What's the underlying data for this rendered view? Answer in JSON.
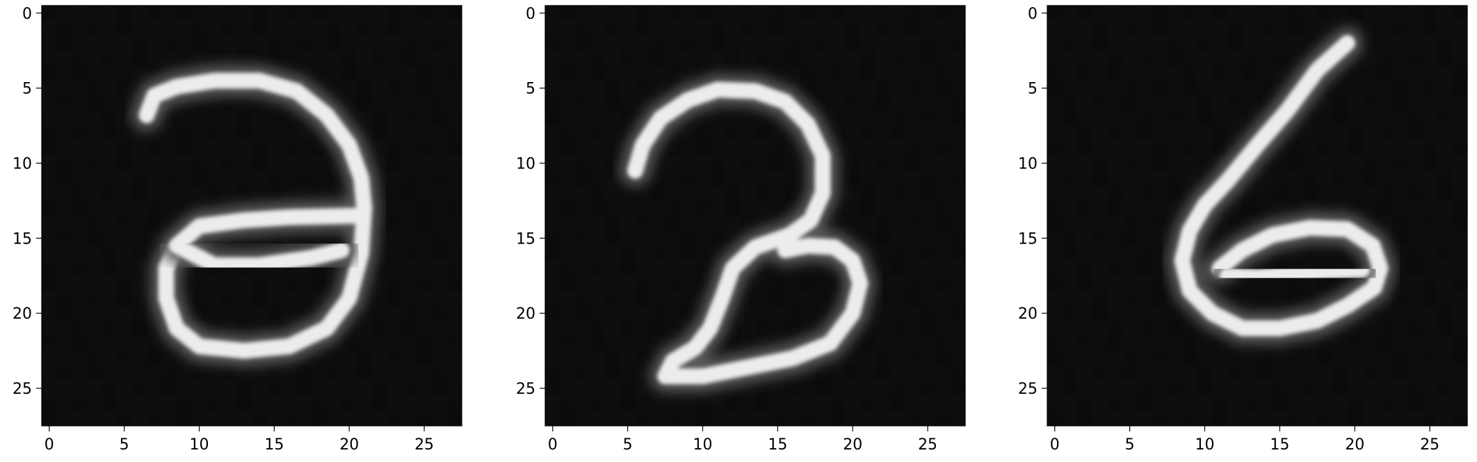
{
  "figure": {
    "panels": [
      {
        "name": "panel-1",
        "x_ticks": [
          "0",
          "5",
          "10",
          "15",
          "20",
          "25"
        ],
        "y_ticks": [
          "0",
          "5",
          "10",
          "15",
          "20",
          "25"
        ],
        "image_size": [
          28,
          28
        ],
        "strokes": [
          [
            [
              6.5,
              6.8
            ],
            [
              7,
              5.5
            ],
            [
              8.5,
              4.9
            ],
            [
              11,
              4.5
            ],
            [
              14,
              4.5
            ],
            [
              16.5,
              5.2
            ],
            [
              18.5,
              6.8
            ],
            [
              20,
              8.8
            ],
            [
              20.8,
              11
            ],
            [
              21,
              13
            ],
            [
              20.8,
              16
            ],
            [
              20,
              19
            ],
            [
              18.5,
              21
            ],
            [
              16,
              22.2
            ],
            [
              13,
              22.5
            ],
            [
              10,
              22.2
            ],
            [
              8.5,
              21
            ],
            [
              7.8,
              19
            ],
            [
              7.8,
              17
            ],
            [
              8.5,
              15.5
            ],
            [
              10,
              14.2
            ],
            [
              13,
              13.8
            ],
            [
              16,
              13.6
            ],
            [
              20.5,
              13.5
            ]
          ],
          [
            [
              8.5,
              15.5
            ],
            [
              11,
              16.8
            ],
            [
              14,
              16.8
            ],
            [
              17.5,
              16.3
            ],
            [
              19.5,
              15.8
            ]
          ]
        ]
      },
      {
        "name": "panel-2",
        "x_ticks": [
          "0",
          "5",
          "10",
          "15",
          "20",
          "25"
        ],
        "y_ticks": [
          "0",
          "5",
          "10",
          "15",
          "20",
          "25"
        ],
        "image_size": [
          28,
          28
        ],
        "strokes": [
          [
            [
              5.5,
              10.5
            ],
            [
              6,
              8.8
            ],
            [
              7.2,
              7
            ],
            [
              9,
              5.8
            ],
            [
              11,
              5.1
            ],
            [
              13.5,
              5.2
            ],
            [
              15.5,
              5.9
            ],
            [
              17,
              7.4
            ],
            [
              18,
              9.5
            ],
            [
              18,
              12
            ],
            [
              17.2,
              13.8
            ],
            [
              15.8,
              14.8
            ],
            [
              13.5,
              15.6
            ],
            [
              12,
              17
            ],
            [
              11.3,
              19
            ],
            [
              10.5,
              21
            ],
            [
              9.5,
              22.3
            ],
            [
              8,
              23.2
            ],
            [
              7.5,
              24.2
            ],
            [
              10,
              24.2
            ],
            [
              13,
              23.6
            ],
            [
              16,
              23
            ],
            [
              18.5,
              22
            ],
            [
              20,
              20
            ],
            [
              20.5,
              18
            ],
            [
              20,
              16.5
            ],
            [
              18.8,
              15.6
            ],
            [
              17,
              15.5
            ],
            [
              15.5,
              15.8
            ]
          ]
        ]
      },
      {
        "name": "panel-3",
        "x_ticks": [
          "0",
          "5",
          "10",
          "15",
          "20",
          "25"
        ],
        "y_ticks": [
          "0",
          "5",
          "10",
          "15",
          "20",
          "25"
        ],
        "image_size": [
          28,
          28
        ],
        "strokes": [
          [
            [
              19.5,
              2
            ],
            [
              17.5,
              3.8
            ],
            [
              15.5,
              6.5
            ],
            [
              13.5,
              8.8
            ],
            [
              11.5,
              11.2
            ],
            [
              10,
              12.8
            ],
            [
              9,
              14.5
            ],
            [
              8.5,
              16.5
            ],
            [
              9,
              18.5
            ],
            [
              10.5,
              20
            ],
            [
              12.5,
              21
            ],
            [
              15,
              21
            ],
            [
              17.5,
              20.5
            ],
            [
              19.5,
              19.5
            ],
            [
              21.3,
              18.3
            ],
            [
              21.7,
              17
            ],
            [
              21.2,
              15.5
            ],
            [
              19.5,
              14.4
            ],
            [
              17,
              14.3
            ],
            [
              14.5,
              14.8
            ],
            [
              12.5,
              15.8
            ],
            [
              11,
              17
            ]
          ],
          [
            [
              11.5,
              17.5
            ],
            [
              13.5,
              17.6
            ],
            [
              15.5,
              17.4
            ],
            [
              18,
              17.2
            ],
            [
              20.5,
              17.1
            ]
          ]
        ]
      }
    ]
  }
}
